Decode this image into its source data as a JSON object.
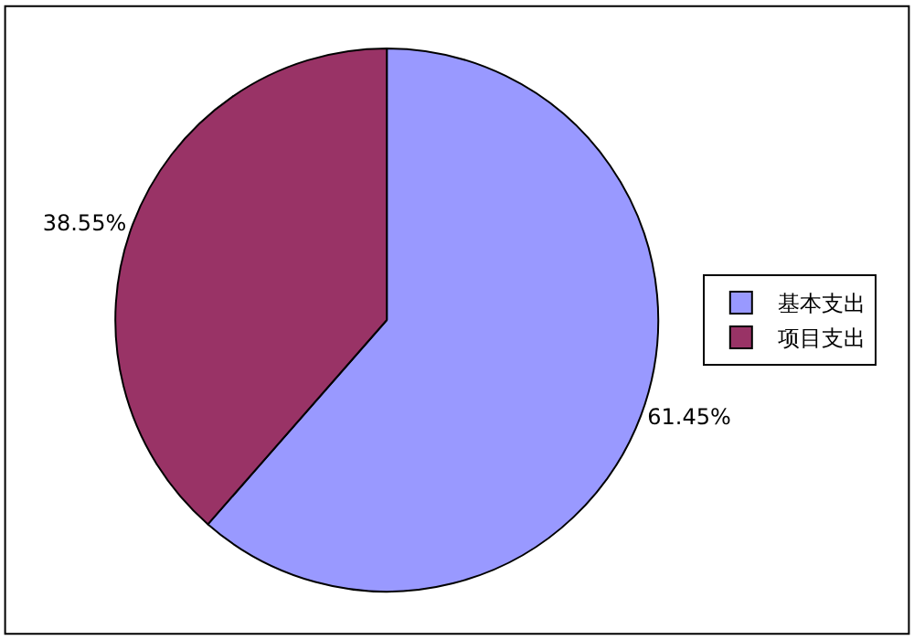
{
  "chart_data": {
    "type": "pie",
    "categories": [
      "基本支出",
      "项目支出"
    ],
    "values": [
      61.45,
      38.55
    ],
    "value_labels": [
      "61.45%",
      "38.55%"
    ],
    "colors": [
      "#9999ff",
      "#993366"
    ],
    "legend": "right"
  }
}
